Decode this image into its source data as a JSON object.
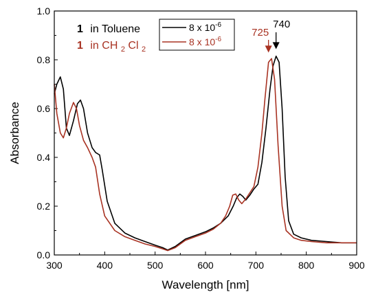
{
  "chart_data": {
    "type": "line",
    "xlabel": "Wavelength [nm]",
    "ylabel": "Absorbance",
    "xlim": [
      300,
      900
    ],
    "ylim": [
      0.0,
      1.0
    ],
    "xticks": [
      "300",
      "400",
      "500",
      "600",
      "700",
      "800",
      "900"
    ],
    "yticks": [
      "0.0",
      "0.2",
      "0.4",
      "0.6",
      "0.8",
      "1.0"
    ],
    "grid": false,
    "legend": {
      "placement": "top",
      "left_entries": [
        {
          "num": "1",
          "text": "in Toluene"
        },
        {
          "num": "1",
          "text": "in CH",
          "sub1": "2",
          "text2": "Cl",
          "sub2": "2"
        }
      ],
      "box_entries": [
        {
          "base": "8 x 10",
          "sup": "-6"
        },
        {
          "base": "8 x 10",
          "sup": "-6"
        }
      ]
    },
    "annotations": [
      {
        "text": "740",
        "x": 740,
        "y": 0.815,
        "series": 0
      },
      {
        "text": "725",
        "x": 725,
        "y": 0.805,
        "series": 1
      }
    ],
    "series": [
      {
        "color": "#000000",
        "x": [
          300,
          305,
          312,
          318,
          324,
          330,
          338,
          346,
          352,
          358,
          366,
          375,
          382,
          390,
          395,
          405,
          420,
          440,
          460,
          480,
          500,
          515,
          525,
          540,
          560,
          580,
          600,
          615,
          630,
          645,
          655,
          662,
          668,
          674,
          680,
          688,
          696,
          704,
          712,
          720,
          728,
          734,
          740,
          746,
          752,
          758,
          765,
          775,
          790,
          810,
          840,
          870,
          900
        ],
        "y": [
          0.66,
          0.7,
          0.73,
          0.68,
          0.52,
          0.49,
          0.55,
          0.62,
          0.635,
          0.6,
          0.5,
          0.44,
          0.42,
          0.41,
          0.35,
          0.22,
          0.13,
          0.09,
          0.07,
          0.055,
          0.04,
          0.03,
          0.02,
          0.035,
          0.065,
          0.08,
          0.095,
          0.11,
          0.13,
          0.16,
          0.2,
          0.235,
          0.25,
          0.24,
          0.225,
          0.245,
          0.27,
          0.29,
          0.38,
          0.52,
          0.68,
          0.775,
          0.815,
          0.79,
          0.6,
          0.32,
          0.14,
          0.085,
          0.07,
          0.06,
          0.055,
          0.05,
          0.05
        ]
      },
      {
        "color": "#a83222",
        "x": [
          300,
          305,
          312,
          318,
          324,
          330,
          338,
          344,
          350,
          358,
          366,
          375,
          382,
          390,
          400,
          420,
          440,
          460,
          480,
          500,
          515,
          525,
          540,
          560,
          580,
          600,
          615,
          630,
          640,
          648,
          654,
          660,
          666,
          672,
          680,
          688,
          696,
          704,
          712,
          718,
          725,
          731,
          737,
          744,
          752,
          760,
          775,
          790,
          810,
          840,
          870,
          900
        ],
        "y": [
          0.7,
          0.58,
          0.5,
          0.48,
          0.52,
          0.58,
          0.625,
          0.6,
          0.53,
          0.47,
          0.44,
          0.4,
          0.36,
          0.25,
          0.16,
          0.1,
          0.075,
          0.06,
          0.045,
          0.035,
          0.025,
          0.018,
          0.03,
          0.06,
          0.075,
          0.09,
          0.105,
          0.13,
          0.16,
          0.2,
          0.245,
          0.25,
          0.225,
          0.21,
          0.23,
          0.255,
          0.28,
          0.36,
          0.5,
          0.64,
          0.79,
          0.805,
          0.72,
          0.45,
          0.2,
          0.1,
          0.07,
          0.06,
          0.055,
          0.05,
          0.05,
          0.05
        ]
      }
    ]
  }
}
